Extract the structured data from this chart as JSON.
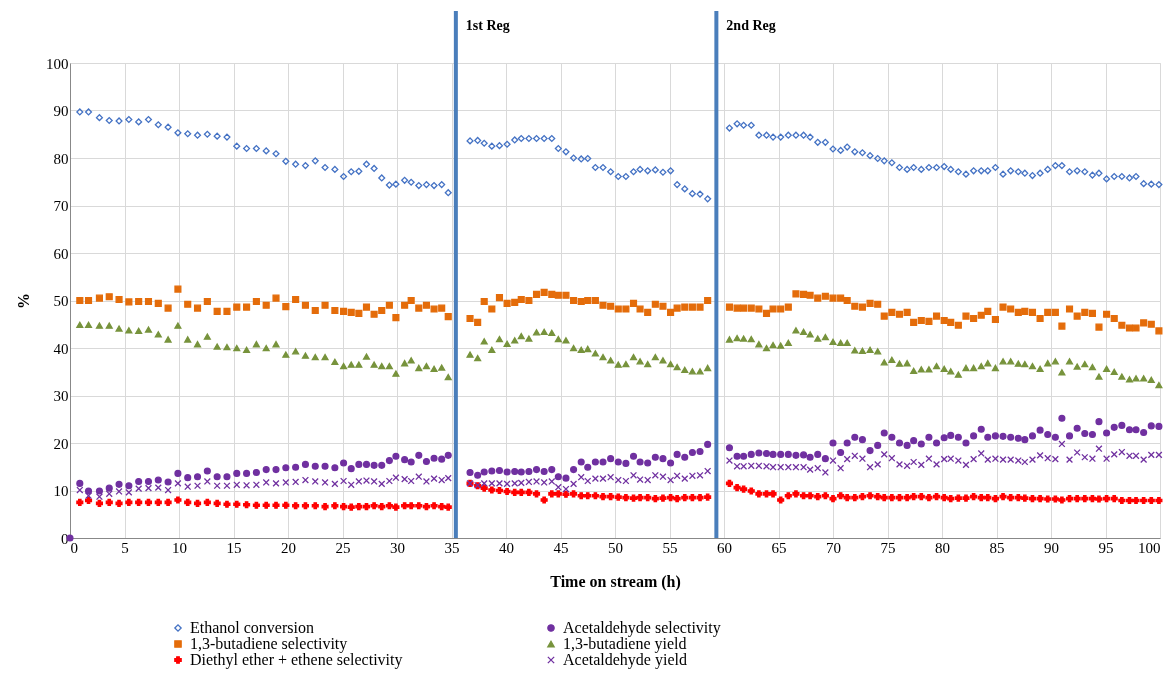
{
  "chart_data": {
    "type": "scatter",
    "xlabel": "Time on stream (h)",
    "ylabel": "%",
    "xlim": [
      0,
      100
    ],
    "ylim": [
      0,
      100
    ],
    "xticks": [
      0,
      5,
      10,
      15,
      20,
      25,
      30,
      35,
      40,
      45,
      50,
      55,
      60,
      65,
      70,
      75,
      80,
      85,
      90,
      95,
      100
    ],
    "yticks": [
      0,
      10,
      20,
      30,
      40,
      50,
      60,
      70,
      80,
      90,
      100
    ],
    "grid": true,
    "legend": "bottom",
    "x": [
      0.9,
      1.7,
      2.7,
      3.6,
      4.5,
      5.4,
      6.3,
      7.2,
      8.1,
      9.0,
      9.9,
      10.8,
      11.7,
      12.6,
      13.5,
      14.4,
      15.3,
      16.2,
      17.1,
      18.0,
      18.9,
      19.8,
      20.7,
      21.6,
      22.5,
      23.4,
      24.3,
      25.1,
      25.8,
      26.5,
      27.2,
      27.9,
      28.6,
      29.3,
      29.9,
      30.7,
      31.3,
      32.0,
      32.7,
      33.4,
      34.1,
      34.7,
      36.7,
      37.4,
      38.0,
      38.7,
      39.4,
      40.1,
      40.8,
      41.4,
      42.1,
      42.8,
      43.5,
      44.2,
      44.8,
      45.5,
      46.2,
      46.9,
      47.5,
      48.2,
      48.9,
      49.6,
      50.3,
      51.0,
      51.7,
      52.3,
      53.0,
      53.7,
      54.4,
      55.1,
      55.7,
      56.4,
      57.1,
      57.8,
      58.5,
      60.5,
      61.2,
      61.8,
      62.5,
      63.2,
      63.9,
      64.5,
      65.2,
      65.9,
      66.6,
      67.3,
      67.9,
      68.6,
      69.3,
      70.0,
      70.7,
      71.3,
      72.0,
      72.7,
      73.4,
      74.1,
      74.7,
      75.4,
      76.1,
      76.8,
      77.4,
      78.1,
      78.8,
      79.5,
      80.2,
      80.8,
      81.5,
      82.2,
      82.9,
      83.6,
      84.2,
      84.9,
      85.6,
      86.3,
      87.0,
      87.6,
      88.3,
      89.0,
      89.7,
      90.4,
      91.0,
      91.7,
      92.4,
      93.1,
      93.8,
      94.4,
      95.1,
      95.8,
      96.5,
      97.2,
      97.8,
      98.5,
      99.2,
      99.9
    ],
    "series": [
      {
        "name": "Ethanol conversion",
        "color": "#4472c4",
        "marker": "diamond",
        "values": [
          89.7,
          89.7,
          88.5,
          87.9,
          87.8,
          88.1,
          87.6,
          88.1,
          87.0,
          86.5,
          85.3,
          85.1,
          84.8,
          85.0,
          84.6,
          84.4,
          82.5,
          82.0,
          82.0,
          81.5,
          80.9,
          79.3,
          78.7,
          78.4,
          79.4,
          78.0,
          77.6,
          76.1,
          77.1,
          77.2,
          78.7,
          77.8,
          75.8,
          74.3,
          74.5,
          75.3,
          74.9,
          74.2,
          74.4,
          74.2,
          74.4,
          72.7,
          83.6,
          83.7,
          83.1,
          82.5,
          82.6,
          82.9,
          83.8,
          84.1,
          84.1,
          84.1,
          84.1,
          84.1,
          82.0,
          81.3,
          80.0,
          79.8,
          79.9,
          78.0,
          78.0,
          77.1,
          76.1,
          76.1,
          77.1,
          77.6,
          77.3,
          77.5,
          77.0,
          77.3,
          74.4,
          73.5,
          72.5,
          72.4,
          71.4,
          86.3,
          87.2,
          86.9,
          86.9,
          84.8,
          84.8,
          84.4,
          84.4,
          84.8,
          84.8,
          84.8,
          84.4,
          83.3,
          83.3,
          81.9,
          81.6,
          82.3,
          81.3,
          81.1,
          80.5,
          79.9,
          79.4,
          79.0,
          78.0,
          77.6,
          78.0,
          77.6,
          78.0,
          78.0,
          78.2,
          77.6,
          77.1,
          76.6,
          77.3,
          77.3,
          77.3,
          78.0,
          76.6,
          77.3,
          77.1,
          76.8,
          76.3,
          76.8,
          77.6,
          78.4,
          78.4,
          77.1,
          77.3,
          77.1,
          76.4,
          76.8,
          75.6,
          76.1,
          76.1,
          75.8,
          76.1,
          74.6,
          74.5,
          74.4
        ]
      },
      {
        "name": "Acetaldehyde selectivity",
        "color": "#7030a0",
        "marker": "circle",
        "x": [
          0,
          0.9,
          1.7,
          2.7,
          3.6,
          4.5,
          5.4,
          6.3,
          7.2,
          8.1,
          9.0,
          9.9,
          10.8,
          11.7,
          12.6,
          13.5,
          14.4,
          15.3,
          16.2,
          17.1,
          18.0,
          18.9,
          19.8,
          20.7,
          21.6,
          22.5,
          23.4,
          24.3,
          25.1,
          25.8,
          26.5,
          27.2,
          27.9,
          28.6,
          29.3,
          29.9,
          30.7,
          31.3,
          32.0,
          32.7,
          33.4,
          34.1,
          34.7,
          36.7,
          37.4,
          38.0,
          38.7,
          39.4,
          40.1,
          40.8,
          41.4,
          42.1,
          42.8,
          43.5,
          44.2,
          44.8,
          45.5,
          46.2,
          46.9,
          47.5,
          48.2,
          48.9,
          49.6,
          50.3,
          51.0,
          51.7,
          52.3,
          53.0,
          53.7,
          54.4,
          55.1,
          55.7,
          56.4,
          57.1,
          57.8,
          58.5,
          60.5,
          61.2,
          61.8,
          62.5,
          63.2,
          63.9,
          64.5,
          65.2,
          65.9,
          66.6,
          67.3,
          67.9,
          68.6,
          69.3,
          70.0,
          70.7,
          71.3,
          72.0,
          72.7,
          73.4,
          74.1,
          74.7,
          75.4,
          76.1,
          76.8,
          77.4,
          78.1,
          78.8,
          79.5,
          80.2,
          80.8,
          81.5,
          82.2,
          82.9,
          83.6,
          84.2,
          84.9,
          85.6,
          86.3,
          87.0,
          87.6,
          88.3,
          89.0,
          89.7,
          90.4,
          91.0,
          91.7,
          92.4,
          93.1,
          93.8,
          94.4,
          95.1,
          95.8,
          96.5,
          97.2,
          97.8,
          98.5,
          99.2,
          99.9
        ],
        "values": [
          0,
          11.5,
          9.9,
          9.9,
          10.5,
          11.3,
          11.0,
          11.9,
          11.9,
          12.2,
          11.8,
          13.6,
          12.7,
          12.9,
          14.1,
          12.9,
          12.9,
          13.6,
          13.6,
          13.8,
          14.4,
          14.4,
          14.8,
          14.9,
          15.5,
          15.1,
          15.1,
          14.8,
          15.8,
          14.6,
          15.5,
          15.5,
          15.3,
          15.3,
          16.3,
          17.2,
          16.5,
          16.0,
          17.4,
          16.1,
          16.8,
          16.6,
          17.4,
          13.8,
          13.2,
          13.9,
          14.1,
          14.2,
          13.9,
          14.0,
          13.9,
          14.0,
          14.4,
          14.0,
          14.4,
          12.9,
          12.6,
          14.4,
          16.0,
          14.9,
          16.0,
          16.0,
          16.7,
          16.0,
          15.7,
          17.2,
          16.0,
          15.8,
          17.0,
          16.7,
          15.8,
          17.6,
          17.0,
          18.0,
          18.2,
          19.7,
          19.0,
          17.2,
          17.2,
          17.6,
          17.9,
          17.8,
          17.6,
          17.6,
          17.6,
          17.4,
          17.5,
          17.0,
          17.6,
          16.7,
          20.0,
          18.0,
          20.0,
          21.2,
          20.7,
          18.4,
          19.5,
          22.1,
          21.2,
          20.0,
          19.5,
          20.5,
          19.8,
          21.2,
          20.0,
          21.1,
          21.6,
          21.2,
          20.0,
          21.5,
          22.9,
          21.2,
          21.5,
          21.4,
          21.2,
          21.0,
          20.7,
          21.5,
          22.7,
          21.8,
          21.2,
          25.2,
          21.5,
          23.1,
          22.0,
          21.8,
          24.5,
          22.1,
          23.3,
          23.7,
          22.8,
          22.8,
          22.2,
          23.6,
          23.5
        ]
      },
      {
        "name": "1,3-butadiene selectivity",
        "color": "#e46c0a",
        "marker": "square",
        "values": [
          50.0,
          50.0,
          50.5,
          50.8,
          50.2,
          49.7,
          49.8,
          49.8,
          49.4,
          48.4,
          52.4,
          49.2,
          48.4,
          49.8,
          47.7,
          47.7,
          48.6,
          48.6,
          49.8,
          49.0,
          50.5,
          48.7,
          50.2,
          49.0,
          47.9,
          49.0,
          47.9,
          47.7,
          47.5,
          47.3,
          48.6,
          47.1,
          47.9,
          49.0,
          46.4,
          49.0,
          50.0,
          48.4,
          49.0,
          48.2,
          48.4,
          46.6,
          46.2,
          45.4,
          49.8,
          48.2,
          50.6,
          49.4,
          49.6,
          50.2,
          50.0,
          51.3,
          51.7,
          51.3,
          51.1,
          51.1,
          50.0,
          49.8,
          50.0,
          50.0,
          49.0,
          48.8,
          48.2,
          48.2,
          49.4,
          48.2,
          47.5,
          49.2,
          48.8,
          47.5,
          48.4,
          48.6,
          48.6,
          48.6,
          50.0,
          48.6,
          48.4,
          48.4,
          48.4,
          48.2,
          47.3,
          48.2,
          48.2,
          48.6,
          51.4,
          51.3,
          51.1,
          50.5,
          50.9,
          50.5,
          50.5,
          50.0,
          48.8,
          48.6,
          49.4,
          49.2,
          46.7,
          47.5,
          47.1,
          47.5,
          45.4,
          45.8,
          45.6,
          46.7,
          45.8,
          45.4,
          44.8,
          46.7,
          46.2,
          46.9,
          47.7,
          46.0,
          48.6,
          48.2,
          47.5,
          47.7,
          47.5,
          46.2,
          47.5,
          47.5,
          44.6,
          48.2,
          46.7,
          47.5,
          47.3,
          44.4,
          47.1,
          46.2,
          44.8,
          44.2,
          44.2,
          45.3,
          45.0,
          43.6
        ]
      },
      {
        "name": "1,3-butadiene yield",
        "color": "#77933c",
        "marker": "triangle",
        "values": [
          44.9,
          44.9,
          44.7,
          44.7,
          44.1,
          43.7,
          43.6,
          43.9,
          42.9,
          41.8,
          44.7,
          41.8,
          40.8,
          42.4,
          40.3,
          40.2,
          40.0,
          39.6,
          40.8,
          40.0,
          40.8,
          38.6,
          39.3,
          38.4,
          38.1,
          38.1,
          37.1,
          36.2,
          36.5,
          36.5,
          38.2,
          36.5,
          36.2,
          36.2,
          34.6,
          36.8,
          37.4,
          35.8,
          36.2,
          35.6,
          35.9,
          33.9,
          38.6,
          37.9,
          41.4,
          39.6,
          41.9,
          40.9,
          41.6,
          42.5,
          42.0,
          43.3,
          43.4,
          43.2,
          41.9,
          41.6,
          40.0,
          39.6,
          39.8,
          38.9,
          38.1,
          37.4,
          36.5,
          36.6,
          38.1,
          37.2,
          36.6,
          38.1,
          37.4,
          36.6,
          36.0,
          35.4,
          35.1,
          35.1,
          35.8,
          41.8,
          42.1,
          42.0,
          41.9,
          40.8,
          40.0,
          40.6,
          40.5,
          41.1,
          43.7,
          43.4,
          42.9,
          42.0,
          42.3,
          41.3,
          41.1,
          41.1,
          39.5,
          39.4,
          39.6,
          39.3,
          37.0,
          37.5,
          36.7,
          36.8,
          35.2,
          35.5,
          35.5,
          36.2,
          35.6,
          35.1,
          34.4,
          35.8,
          35.8,
          36.2,
          36.8,
          35.8,
          37.2,
          37.2,
          36.7,
          36.6,
          36.2,
          35.6,
          36.8,
          37.2,
          34.9,
          37.2,
          36.1,
          36.6,
          36.0,
          34.0,
          35.6,
          35.0,
          34.0,
          33.4,
          33.6,
          33.6,
          33.3,
          32.2
        ]
      },
      {
        "name": "Diethyl ether + ethene selectivity",
        "color": "#ff0000",
        "marker": "cross",
        "values": [
          7.5,
          7.9,
          7.3,
          7.5,
          7.3,
          7.5,
          7.5,
          7.5,
          7.5,
          7.5,
          8.0,
          7.5,
          7.3,
          7.5,
          7.3,
          7.1,
          7.1,
          7.0,
          6.9,
          6.9,
          6.9,
          6.9,
          6.8,
          6.8,
          6.8,
          6.6,
          6.8,
          6.6,
          6.5,
          6.6,
          6.6,
          6.8,
          6.6,
          6.8,
          6.5,
          6.8,
          6.8,
          6.8,
          6.6,
          6.8,
          6.6,
          6.5,
          11.5,
          11.0,
          10.5,
          10.1,
          10.0,
          9.8,
          9.6,
          9.6,
          9.6,
          9.3,
          8.0,
          9.3,
          9.3,
          9.2,
          9.3,
          8.9,
          8.9,
          8.9,
          8.7,
          8.7,
          8.6,
          8.5,
          8.4,
          8.5,
          8.5,
          8.3,
          8.4,
          8.5,
          8.3,
          8.5,
          8.5,
          8.5,
          8.6,
          11.5,
          10.6,
          10.3,
          9.9,
          9.3,
          9.3,
          9.3,
          8.0,
          8.9,
          9.3,
          8.9,
          8.9,
          8.7,
          8.9,
          8.3,
          8.9,
          8.5,
          8.5,
          8.7,
          8.9,
          8.7,
          8.5,
          8.5,
          8.5,
          8.5,
          8.7,
          8.7,
          8.5,
          8.7,
          8.5,
          8.3,
          8.4,
          8.4,
          8.7,
          8.5,
          8.5,
          8.3,
          8.7,
          8.5,
          8.5,
          8.4,
          8.3,
          8.3,
          8.2,
          8.2,
          8.0,
          8.3,
          8.3,
          8.3,
          8.3,
          8.2,
          8.3,
          8.3,
          7.9,
          7.9,
          7.9,
          7.9,
          7.9,
          7.9
        ]
      },
      {
        "name": "Acetaldehyde yield",
        "color": "#7030a0",
        "marker": "x",
        "values": [
          10.1,
          8.9,
          8.7,
          9.3,
          9.8,
          9.6,
          10.4,
          10.5,
          10.6,
          10.1,
          11.5,
          10.8,
          11.0,
          11.9,
          11.0,
          11.0,
          11.2,
          11.1,
          11.2,
          11.7,
          11.5,
          11.7,
          11.8,
          12.2,
          11.9,
          11.7,
          11.4,
          12.0,
          11.2,
          11.9,
          12.1,
          11.9,
          11.4,
          12.0,
          12.7,
          12.4,
          12.0,
          12.9,
          11.9,
          12.5,
          12.2,
          12.6,
          11.5,
          11.1,
          11.5,
          11.5,
          11.5,
          11.4,
          11.5,
          11.6,
          11.8,
          11.9,
          11.7,
          11.9,
          10.7,
          10.3,
          11.4,
          12.8,
          12.0,
          12.5,
          12.5,
          12.8,
          12.2,
          12.0,
          13.2,
          12.3,
          12.2,
          13.2,
          12.9,
          12.2,
          13.1,
          12.5,
          13.1,
          13.2,
          14.1,
          16.3,
          15.1,
          15.1,
          15.2,
          15.2,
          15.1,
          14.9,
          14.9,
          14.9,
          14.9,
          14.9,
          14.4,
          14.7,
          13.8,
          16.3,
          14.7,
          16.6,
          17.3,
          16.7,
          14.9,
          15.5,
          17.6,
          16.8,
          15.5,
          15.2,
          16.0,
          15.4,
          16.7,
          15.5,
          16.6,
          16.7,
          16.3,
          15.4,
          16.6,
          17.8,
          16.5,
          16.7,
          16.5,
          16.5,
          16.3,
          16.0,
          16.5,
          17.4,
          16.8,
          16.6,
          19.8,
          16.5,
          18.0,
          17.0,
          16.7,
          18.8,
          16.7,
          17.6,
          18.1,
          17.3,
          17.3,
          16.5,
          17.5,
          17.5
        ]
      }
    ],
    "ref_lines": [
      {
        "axis": "x",
        "value": 35.4,
        "label": "1st Reg",
        "color": "#4a7ebb"
      },
      {
        "axis": "x",
        "value": 59.3,
        "label": "2nd Reg",
        "color": "#4a7ebb"
      }
    ]
  }
}
